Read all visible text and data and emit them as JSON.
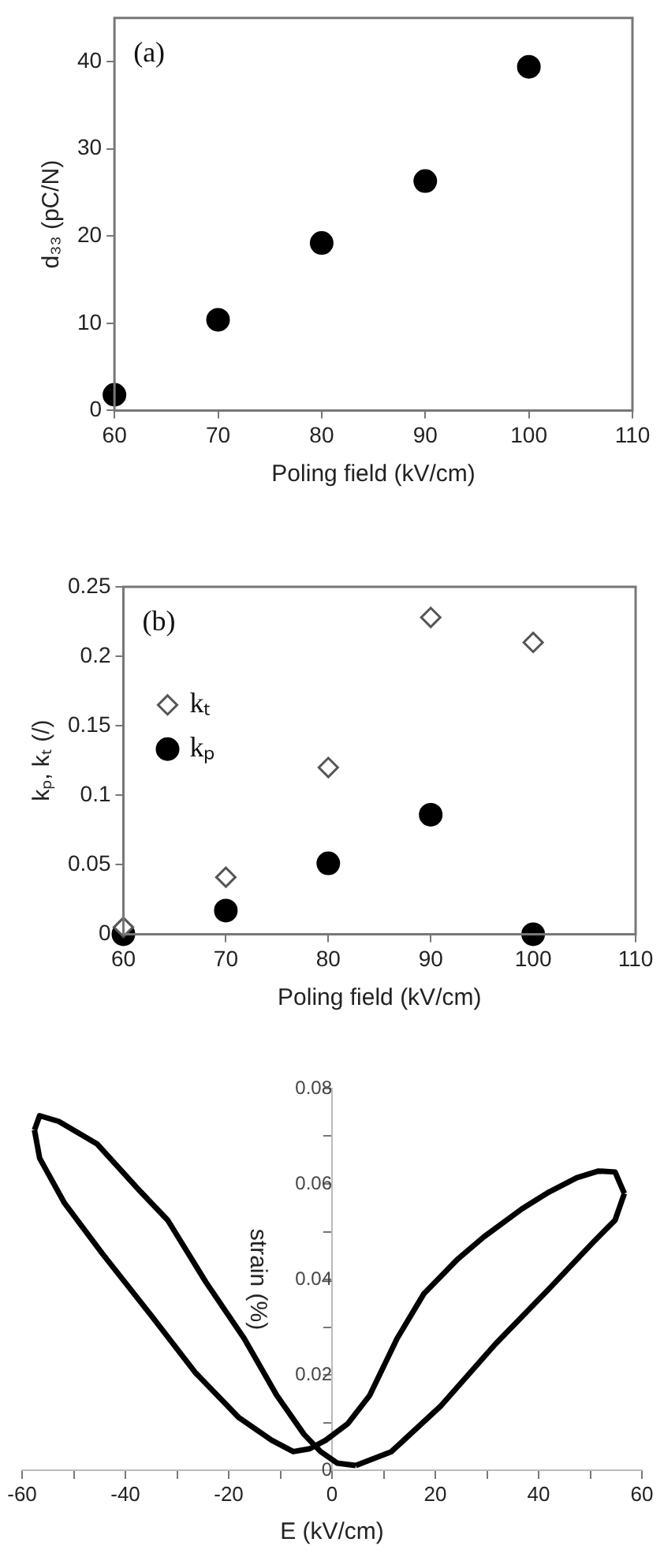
{
  "chart_data": [
    {
      "type": "scatter",
      "xlabel": "Poling field (kV/cm)",
      "ylabel": "d₃₃ (pC/N)",
      "annotations": [
        "(a)"
      ],
      "x": [
        60,
        70,
        80,
        90,
        100
      ],
      "xlim": [
        60,
        110
      ],
      "xticks": [
        60,
        70,
        80,
        90,
        100,
        110
      ],
      "ylim": [
        0,
        45
      ],
      "yticks": [
        0,
        10,
        20,
        30,
        40
      ],
      "grid": false,
      "marker": "circle",
      "series": [
        {
          "color": "#000000",
          "values": [
            1.8,
            10.4,
            19.2,
            26.3,
            39.4
          ]
        }
      ]
    },
    {
      "type": "scatter",
      "xlabel": "Poling field (kV/cm)",
      "ylabel": "kₚ, kₜ (/)",
      "annotations": [
        "(b)"
      ],
      "x": [
        60,
        70,
        80,
        90,
        100
      ],
      "xlim": [
        60,
        110
      ],
      "xticks": [
        60,
        70,
        80,
        90,
        100,
        110
      ],
      "ylim": [
        0,
        0.25
      ],
      "yticks": [
        0,
        0.05,
        0.1,
        0.15,
        0.2,
        0.25
      ],
      "grid": false,
      "legend": "top left",
      "series": [
        {
          "name": "kₜ",
          "color": "#555555",
          "marker": "diamond",
          "values": [
            0.005,
            0.041,
            0.12,
            0.228,
            0.21
          ]
        },
        {
          "name": "kₚ",
          "color": "#000000",
          "marker": "circle",
          "values": [
            0,
            0.017,
            0.051,
            0.086,
            0
          ]
        }
      ]
    },
    {
      "type": "line",
      "xlabel": "E (kV/cm)",
      "ylabel": "strain (%)",
      "xlim": [
        -60,
        60
      ],
      "xticks": [
        -60,
        {
          "value": -50,
          "label": null
        },
        -40,
        {
          "value": -30,
          "label": null
        },
        -20,
        {
          "value": -10,
          "label": null
        },
        0,
        {
          "value": 10,
          "label": null
        },
        20,
        {
          "value": 30,
          "label": null
        },
        40,
        {
          "value": 50,
          "label": null
        },
        60
      ],
      "ylim": [
        0,
        0.08
      ],
      "yticks": [
        0,
        {
          "value": 0.01,
          "label": null
        },
        0.02,
        {
          "value": 0.03,
          "label": null
        },
        0.04,
        {
          "value": 0.05,
          "label": null
        },
        0.06,
        {
          "value": 0.07,
          "label": null
        },
        0.08
      ],
      "grid": false,
      "marker": "none",
      "line_style": "solid",
      "series": [
        {
          "color": "#000000",
          "x": [
            4.6,
            11.5,
            21,
            31.6,
            42,
            50.5,
            54.8,
            56.6
          ],
          "values": [
            0.001,
            0.0039,
            0.0134,
            0.0264,
            0.038,
            0.0477,
            0.0524,
            0.058
          ]
        },
        {
          "color": "#000000",
          "x": [
            56.6,
            54.8,
            51.6,
            47.4,
            42,
            36.8,
            29.4,
            24.2,
            17.8,
            12.6,
            7.3,
            3.1,
            -1.2,
            -4.3,
            -7.5,
            -11.7,
            -18,
            -26.5,
            -34.9,
            -44.4,
            -51.8,
            -56.6,
            -57.6
          ],
          "values": [
            0.058,
            0.0625,
            0.0627,
            0.0613,
            0.0583,
            0.0548,
            0.0489,
            0.0441,
            0.037,
            0.0276,
            0.0157,
            0.0098,
            0.0063,
            0.0045,
            0.0039,
            0.0063,
            0.011,
            0.0205,
            0.0323,
            0.0453,
            0.056,
            0.0654,
            0.0713
          ]
        },
        {
          "color": "#000000",
          "x": [
            -57.6,
            -56.6,
            -52.9,
            -45.5,
            -37,
            -31.8,
            -24.4,
            -17,
            -10.7,
            -5.4,
            -2.2,
            1,
            4.6
          ],
          "values": [
            0.0713,
            0.0743,
            0.0731,
            0.0684,
            0.0583,
            0.0524,
            0.0394,
            0.0276,
            0.0157,
            0.0075,
            0.0039,
            0.0015,
            0.001
          ]
        }
      ]
    }
  ]
}
